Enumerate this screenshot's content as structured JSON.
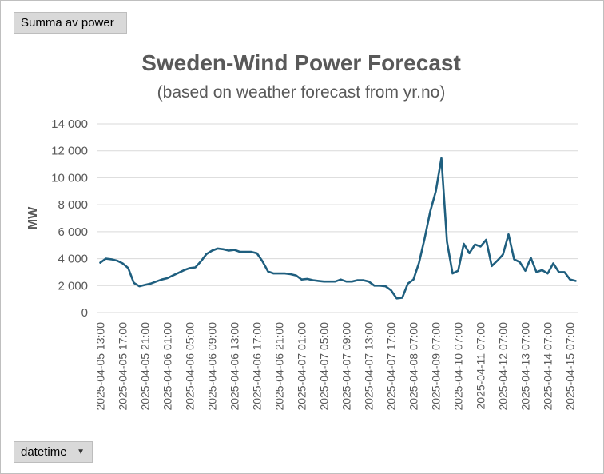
{
  "pivot": {
    "value_field": "Summa av power",
    "axis_field": "datetime",
    "dropdown_icon": "triangle-down-icon"
  },
  "colors": {
    "line": "#1f5f7f",
    "text": "#595959",
    "grid": "#d9d9d9"
  },
  "chart_data": {
    "type": "line",
    "title": "Sweden-Wind Power Forecast",
    "subtitle": "(based on weather forecast from yr.no)",
    "ylabel": "MW",
    "ylim": [
      0,
      14000
    ],
    "yticks": [
      0,
      2000,
      4000,
      6000,
      8000,
      10000,
      12000,
      14000
    ],
    "ytick_labels": [
      "0",
      "2 000",
      "4 000",
      "6 000",
      "8 000",
      "10 000",
      "12 000",
      "14 000"
    ],
    "grid": true,
    "tick_labels": [
      "2025-04-05 13:00",
      "2025-04-05 17:00",
      "2025-04-05 21:00",
      "2025-04-06 01:00",
      "2025-04-06 05:00",
      "2025-04-06 09:00",
      "2025-04-06 13:00",
      "2025-04-06 17:00",
      "2025-04-06 21:00",
      "2025-04-07 01:00",
      "2025-04-07 05:00",
      "2025-04-07 09:00",
      "2025-04-07 13:00",
      "2025-04-07 17:00",
      "2025-04-08 07:00",
      "2025-04-09 07:00",
      "2025-04-10 07:00",
      "2025-04-11 07:00",
      "2025-04-12 07:00",
      "2025-04-13 07:00",
      "2025-04-14 07:00",
      "2025-04-15 07:00"
    ],
    "tick_positions": [
      0,
      4,
      8,
      12,
      16,
      20,
      24,
      28,
      32,
      36,
      40,
      44,
      48,
      52,
      56,
      60,
      64,
      68,
      72,
      76,
      80,
      84
    ],
    "series": [
      {
        "values": [
          3700,
          4000,
          3950,
          3850,
          3650,
          3300,
          2200,
          1950,
          2050,
          2150,
          2300,
          2450,
          2550,
          2750,
          2950,
          3150,
          3300,
          3350,
          3800,
          4350,
          4600,
          4750,
          4700,
          4600,
          4650,
          4500,
          4500,
          4500,
          4400,
          3800,
          3050,
          2900,
          2900,
          2900,
          2850,
          2750,
          2450,
          2500,
          2400,
          2350,
          2300,
          2300,
          2300,
          2450,
          2300,
          2300,
          2400,
          2400,
          2300,
          2000,
          2000,
          1950,
          1650,
          1050,
          1100,
          2150,
          2450,
          3700,
          5500,
          7500,
          9000,
          11450,
          5250,
          2900,
          3100,
          5100,
          4400,
          5050,
          4900,
          5400,
          3450,
          3850,
          4300,
          5800,
          3950,
          3750,
          3100,
          4050,
          3000,
          3150,
          2900,
          3650,
          3000,
          3000,
          2450,
          2350
        ]
      }
    ]
  }
}
